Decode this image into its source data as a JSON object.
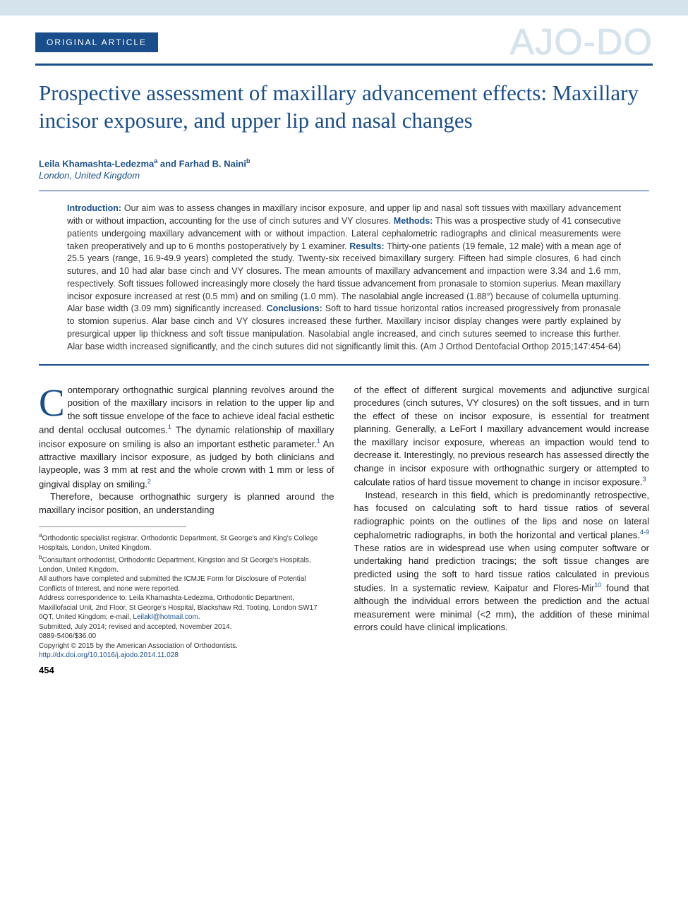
{
  "header": {
    "article_type": "ORIGINAL ARTICLE",
    "journal_logo": "AJO-DO"
  },
  "title": "Prospective assessment of maxillary advancement effects: Maxillary incisor exposure, and upper lip and nasal changes",
  "authors_line": "Leila Khamashta-Ledezma",
  "author_a_sup": "a",
  "authors_and": " and ",
  "author_b": "Farhad B. Naini",
  "author_b_sup": "b",
  "affiliation_city": "London, United Kingdom",
  "abstract": {
    "intro_label": "Introduction:",
    "intro_text": " Our aim was to assess changes in maxillary incisor exposure, and upper lip and nasal soft tissues with maxillary advancement with or without impaction, accounting for the use of cinch sutures and VY closures. ",
    "methods_label": "Methods:",
    "methods_text": " This was a prospective study of 41 consecutive patients undergoing maxillary advancement with or without impaction. Lateral cephalometric radiographs and clinical measurements were taken preoperatively and up to 6 months postoperatively by 1 examiner. ",
    "results_label": "Results:",
    "results_text": " Thirty-one patients (19 female, 12 male) with a mean age of 25.5 years (range, 16.9-49.9 years) completed the study. Twenty-six received bimaxillary surgery. Fifteen had simple closures, 6 had cinch sutures, and 10 had alar base cinch and VY closures. The mean amounts of maxillary advancement and impaction were 3.34 and 1.6 mm, respectively. Soft tissues followed increasingly more closely the hard tissue advancement from pronasale to stomion superius. Mean maxillary incisor exposure increased at rest (0.5 mm) and on smiling (1.0 mm). The nasolabial angle increased (1.88°) because of columella upturning. Alar base width (3.09 mm) significantly increased. ",
    "conclusions_label": "Conclusions:",
    "conclusions_text": " Soft to hard tissue horizontal ratios increased progressively from pronasale to stomion superius. Alar base cinch and VY closures increased these further. Maxillary incisor display changes were partly explained by presurgical upper lip thickness and soft tissue manipulation. Nasolabial angle increased, and cinch sutures seemed to increase this further. Alar base width increased significantly, and the cinch sutures did not significantly limit this. (Am J Orthod Dentofacial Orthop 2015;147:454-64)"
  },
  "body": {
    "left": {
      "p1_a": "ontemporary orthognathic surgical planning revolves around the position of the maxillary incisors in relation to the upper lip and the soft tissue envelope of the face to achieve ideal facial esthetic and dental occlusal outcomes.",
      "ref1a": "1",
      "p1_b": " The dynamic relationship of maxillary incisor exposure on smiling is also an important esthetic parameter.",
      "ref1b": "1",
      "p1_c": " An attractive maxillary incisor exposure, as judged by both clinicians and laypeople, was 3 mm at rest and the whole crown with 1 mm or less of gingival display on smiling.",
      "ref2": "2",
      "p2": "Therefore, because orthognathic surgery is planned around the maxillary incisor position, an understanding"
    },
    "right": {
      "p1_a": "of the effect of different surgical movements and adjunctive surgical procedures (cinch sutures, VY closures) on the soft tissues, and in turn the effect of these on incisor exposure, is essential for treatment planning. Generally, a LeFort I maxillary advancement would increase the maxillary incisor exposure, whereas an impaction would tend to decrease it. Interestingly, no previous research has assessed directly the change in incisor exposure with orthognathic surgery or attempted to calculate ratios of hard tissue movement to change in incisor exposure.",
      "ref3": "3",
      "p2_a": "Instead, research in this field, which is predominantly retrospective, has focused on calculating soft to hard tissue ratios of several radiographic points on the outlines of the lips and nose on lateral cephalometric radiographs, in both the horizontal and vertical planes.",
      "ref4_9": "4-9",
      "p2_b": " These ratios are in widespread use when using computer software or undertaking hand prediction tracings; the soft tissue changes are predicted using the soft to hard tissue ratios calculated in previous studies. In a systematic review, Kaipatur and Flores-Mir",
      "ref10": "10",
      "p2_c": " found that although the individual errors between the prediction and the actual measurement were minimal (<2 mm), the addition of these minimal errors could have clinical implications."
    }
  },
  "footnotes": {
    "a": "Orthodontic specialist registrar, Orthodontic Department, St George's and King's College Hospitals, London, United Kingdom.",
    "b": "Consultant orthodontist, Orthodontic Department, Kingston and St George's Hospitals, London, United Kingdom.",
    "disclosure": "All authors have completed and submitted the ICMJE Form for Disclosure of Potential Conflicts of Interest, and none were reported.",
    "correspondence": "Address correspondence to: Leila Khamashta-Ledezma, Orthodontic Department, Maxillofacial Unit, 2nd Floor, St George's Hospital, Blackshaw Rd, Tooting, London SW17 0QT, United Kingdom; e-mail, ",
    "email": "Leilakl@hotmail.com",
    "email_after": ".",
    "submitted": "Submitted, July 2014; revised and accepted, November 2014.",
    "issn": "0889-5406/$36.00",
    "copyright": "Copyright © 2015 by the American Association of Orthodontists.",
    "doi": "http://dx.doi.org/10.1016/j.ajodo.2014.11.028"
  },
  "page_number": "454",
  "colors": {
    "brand_blue": "#1a4e8a",
    "pale_blue": "#d5e3ec",
    "text": "#222222",
    "footnote_text": "#333333"
  }
}
